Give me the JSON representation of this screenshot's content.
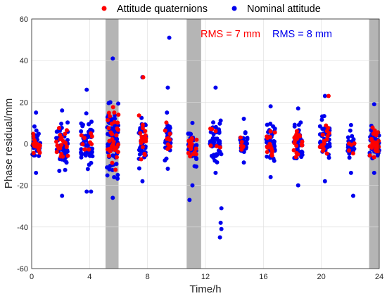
{
  "chart_data": {
    "type": "scatter",
    "title": "",
    "xlabel": "Time/h",
    "ylabel": "Phase residual/mm",
    "xlim": [
      0,
      24
    ],
    "ylim": [
      -60,
      60
    ],
    "xticks": [
      0,
      4,
      8,
      12,
      16,
      20,
      24
    ],
    "yticks": [
      -60,
      -40,
      -20,
      0,
      20,
      40,
      60
    ],
    "grid": true,
    "legend_position": "top-center",
    "shaded_intervals": [
      [
        5.1,
        6.0
      ],
      [
        10.7,
        11.7
      ],
      [
        23.3,
        24.0
      ]
    ],
    "series": [
      {
        "name": "Attitude quaternions",
        "color": "#ff0000"
      },
      {
        "name": "Nominal attitude",
        "color": "#0000ee"
      }
    ],
    "clusters": [
      {
        "x": [
          0,
          0.6
        ],
        "ymin": -14,
        "ymax": 15,
        "red": 18,
        "blue": 40
      },
      {
        "x": [
          1.7,
          2.5
        ],
        "ymin": -25,
        "ymax": 16,
        "red": 20,
        "blue": 55
      },
      {
        "x": [
          3.4,
          4.2
        ],
        "ymin": -23,
        "ymax": 26,
        "red": 10,
        "blue": 55
      },
      {
        "x": [
          5.2,
          6.0
        ],
        "ymin": -26,
        "ymax": 41,
        "red": 35,
        "blue": 80
      },
      {
        "x": [
          7.4,
          7.9
        ],
        "ymin": -18,
        "ymax": 32,
        "red": 18,
        "blue": 40
      },
      {
        "x": [
          9.2,
          9.6
        ],
        "ymin": -12,
        "ymax": 27,
        "red": 10,
        "blue": 35
      },
      {
        "x": [
          10.8,
          11.4
        ],
        "ymin": -20,
        "ymax": 10,
        "red": 18,
        "blue": 40
      },
      {
        "x": [
          12.3,
          13.1
        ],
        "ymin": -14,
        "ymax": 27,
        "red": 6,
        "blue": 45
      },
      {
        "x": [
          14.4,
          14.9
        ],
        "ymin": -9,
        "ymax": 12,
        "red": 6,
        "blue": 30
      },
      {
        "x": [
          16.2,
          16.8
        ],
        "ymin": -16,
        "ymax": 18,
        "red": 15,
        "blue": 45
      },
      {
        "x": [
          18.1,
          18.7
        ],
        "ymin": -20,
        "ymax": 17,
        "red": 18,
        "blue": 45
      },
      {
        "x": [
          19.9,
          20.6
        ],
        "ymin": -18,
        "ymax": 23,
        "red": 15,
        "blue": 45
      },
      {
        "x": [
          21.8,
          22.3
        ],
        "ymin": -14,
        "ymax": 9,
        "red": 5,
        "blue": 30
      },
      {
        "x": [
          23.3,
          24.0
        ],
        "ymin": -14,
        "ymax": 19,
        "red": 30,
        "blue": 40
      }
    ],
    "outliers": [
      {
        "x": 9.5,
        "y": 51,
        "color": "blue"
      },
      {
        "x": 13.1,
        "y": -31,
        "color": "blue"
      },
      {
        "x": 13.05,
        "y": -38,
        "color": "blue"
      },
      {
        "x": 13.1,
        "y": -41,
        "color": "blue"
      },
      {
        "x": 13.0,
        "y": -45,
        "color": "blue"
      },
      {
        "x": 10.9,
        "y": -27,
        "color": "blue"
      },
      {
        "x": 22.2,
        "y": -25,
        "color": "blue"
      },
      {
        "x": 4.1,
        "y": -23,
        "color": "blue"
      },
      {
        "x": 7.7,
        "y": 32,
        "color": "red"
      },
      {
        "x": 20.5,
        "y": 23,
        "color": "red"
      }
    ]
  },
  "annotations": {
    "rms_quaternions": "RMS = 7 mm",
    "rms_nominal": "RMS = 8 mm"
  }
}
